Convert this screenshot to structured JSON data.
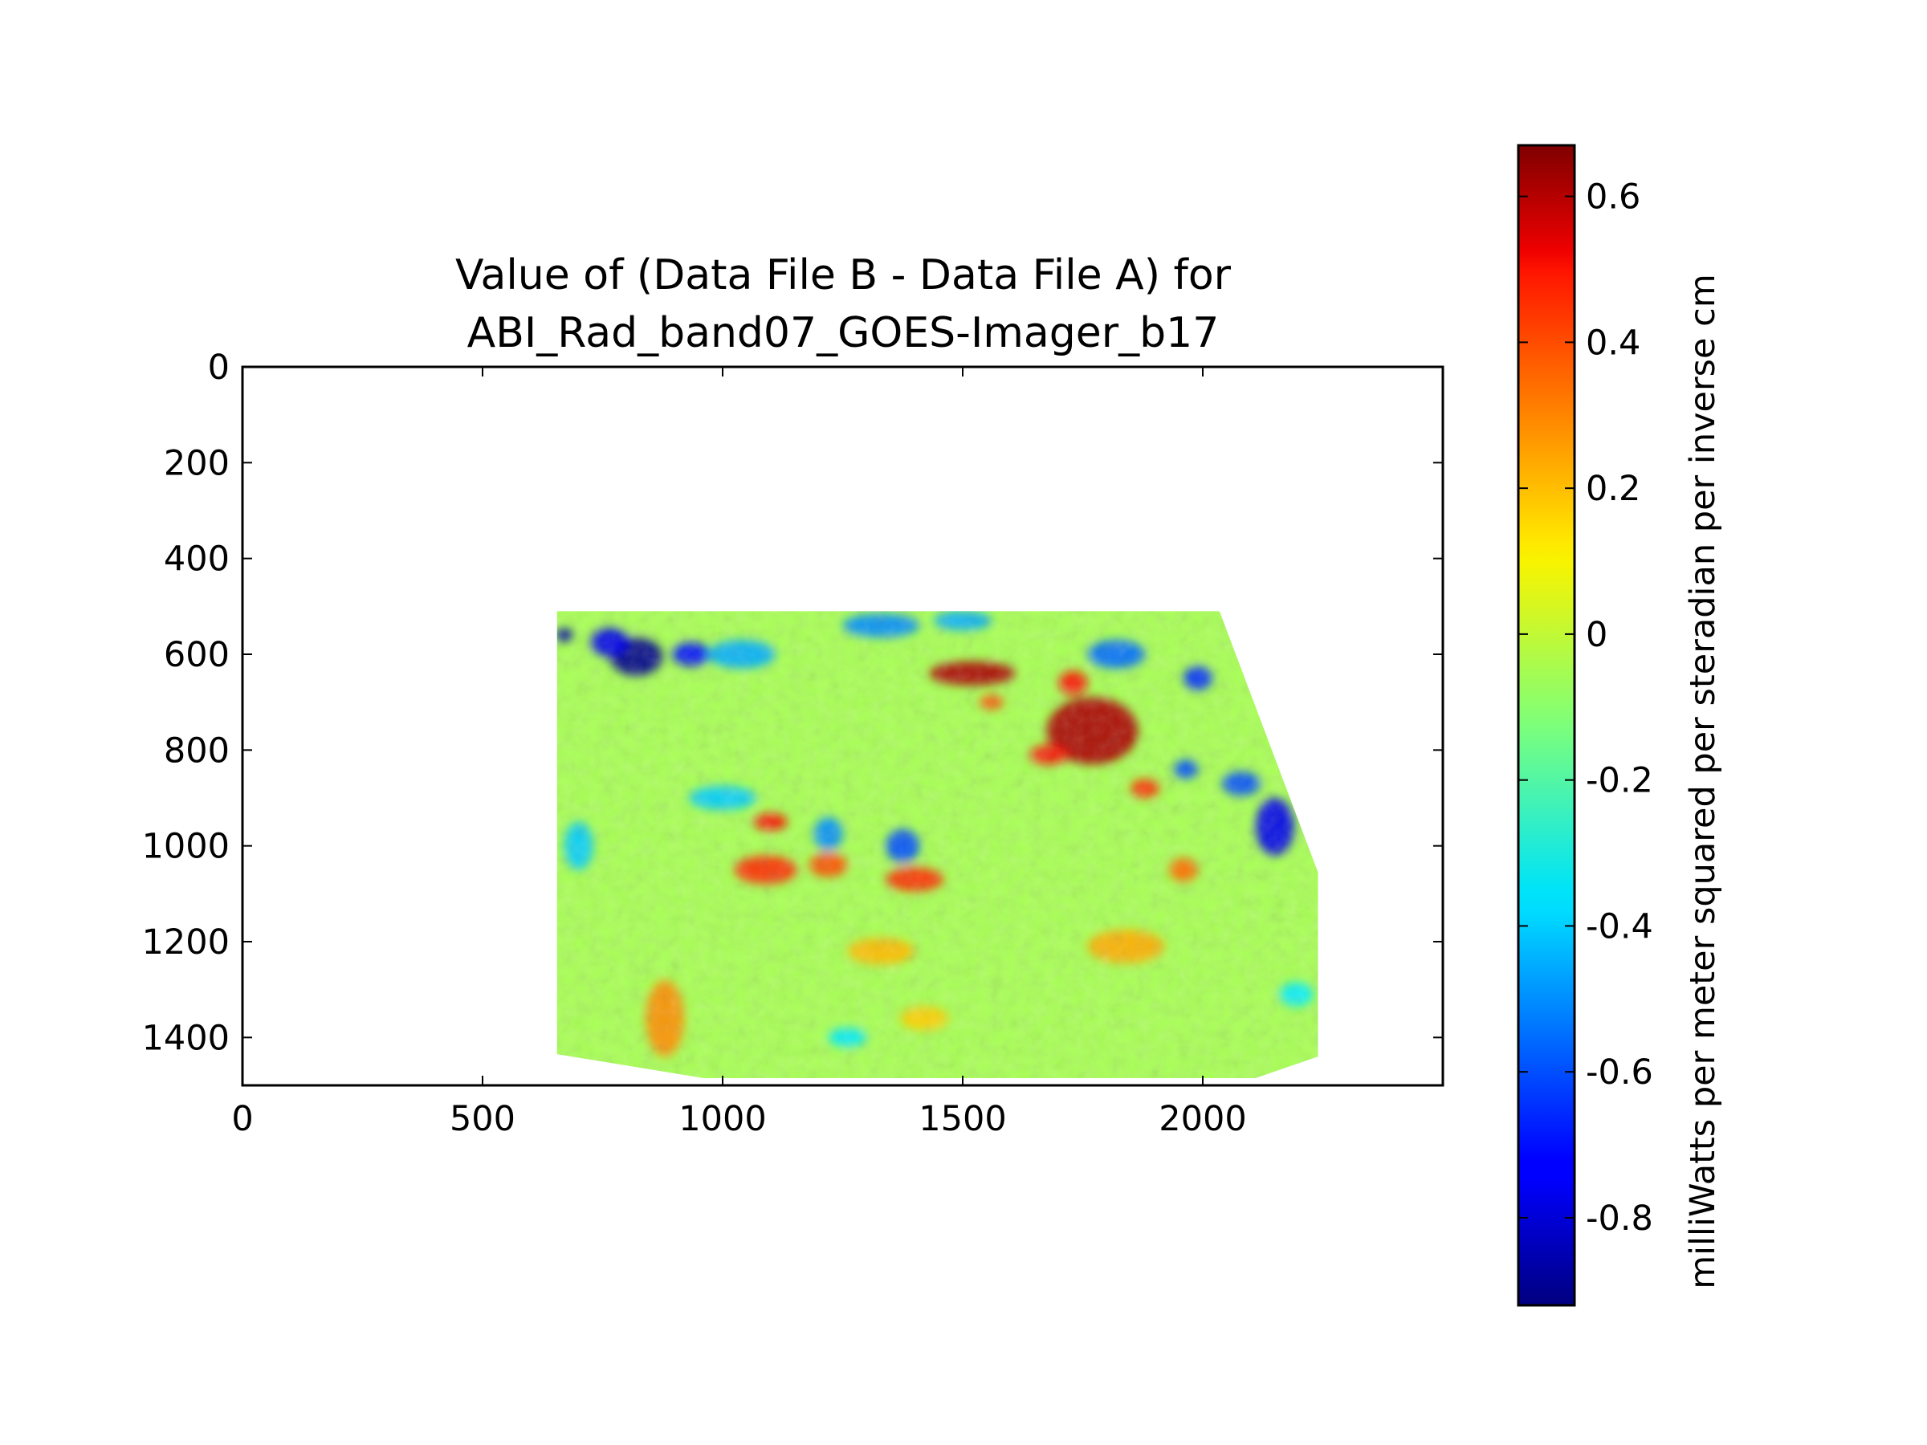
{
  "chart_data": {
    "type": "heatmap",
    "title": "Value of (Data File B - Data File A) for",
    "subtitle": "ABI_Rad_band07_GOES-Imager_b17",
    "xlabel": "",
    "ylabel": "",
    "xlim": [
      0,
      2500
    ],
    "ylim": [
      1500,
      0
    ],
    "y_axis_inverted": true,
    "x_ticks": [
      0,
      500,
      1000,
      1500,
      2000
    ],
    "x_tick_labels": [
      "0",
      "500",
      "1000",
      "1500",
      "2000"
    ],
    "y_ticks": [
      0,
      200,
      400,
      600,
      800,
      1000,
      1200,
      1400
    ],
    "y_tick_labels": [
      "0",
      "200",
      "400",
      "600",
      "800",
      "1000",
      "1200",
      "1400"
    ],
    "grid": false,
    "colormap": "jet",
    "data_footprint_polygon": [
      [
        655,
        510
      ],
      [
        2035,
        510
      ],
      [
        2240,
        1055
      ],
      [
        2240,
        1440
      ],
      [
        2110,
        1485
      ],
      [
        960,
        1485
      ],
      [
        655,
        1435
      ]
    ],
    "background_value": -0.06,
    "features": [
      {
        "kind": "negative",
        "x": 820,
        "y": 605,
        "rx": 55,
        "ry": 40,
        "value": -0.9
      },
      {
        "kind": "negative",
        "x": 765,
        "y": 575,
        "rx": 40,
        "ry": 30,
        "value": -0.75
      },
      {
        "kind": "negative",
        "x": 670,
        "y": 560,
        "rx": 18,
        "ry": 14,
        "value": -0.85
      },
      {
        "kind": "negative",
        "x": 935,
        "y": 600,
        "rx": 40,
        "ry": 25,
        "value": -0.7
      },
      {
        "kind": "negative",
        "x": 1040,
        "y": 600,
        "rx": 70,
        "ry": 30,
        "value": -0.45
      },
      {
        "kind": "negative",
        "x": 1330,
        "y": 540,
        "rx": 80,
        "ry": 25,
        "value": -0.5
      },
      {
        "kind": "negative",
        "x": 1500,
        "y": 530,
        "rx": 60,
        "ry": 20,
        "value": -0.45
      },
      {
        "kind": "negative",
        "x": 1820,
        "y": 600,
        "rx": 60,
        "ry": 30,
        "value": -0.55
      },
      {
        "kind": "negative",
        "x": 1990,
        "y": 650,
        "rx": 30,
        "ry": 25,
        "value": -0.65
      },
      {
        "kind": "negative",
        "x": 2150,
        "y": 960,
        "rx": 40,
        "ry": 60,
        "value": -0.75
      },
      {
        "kind": "negative",
        "x": 2080,
        "y": 870,
        "rx": 40,
        "ry": 25,
        "value": -0.6
      },
      {
        "kind": "negative",
        "x": 1965,
        "y": 840,
        "rx": 25,
        "ry": 20,
        "value": -0.6
      },
      {
        "kind": "negative",
        "x": 1375,
        "y": 1000,
        "rx": 35,
        "ry": 35,
        "value": -0.6
      },
      {
        "kind": "negative",
        "x": 1220,
        "y": 975,
        "rx": 30,
        "ry": 35,
        "value": -0.5
      },
      {
        "kind": "negative",
        "x": 1000,
        "y": 900,
        "rx": 70,
        "ry": 25,
        "value": -0.4
      },
      {
        "kind": "negative",
        "x": 700,
        "y": 1000,
        "rx": 30,
        "ry": 50,
        "value": -0.4
      },
      {
        "kind": "negative",
        "x": 1260,
        "y": 1400,
        "rx": 40,
        "ry": 20,
        "value": -0.35
      },
      {
        "kind": "negative",
        "x": 2195,
        "y": 1310,
        "rx": 35,
        "ry": 25,
        "value": -0.35
      },
      {
        "kind": "positive",
        "x": 1520,
        "y": 640,
        "rx": 90,
        "ry": 25,
        "value": 0.6
      },
      {
        "kind": "positive",
        "x": 1770,
        "y": 760,
        "rx": 95,
        "ry": 70,
        "value": 0.6
      },
      {
        "kind": "positive",
        "x": 1680,
        "y": 810,
        "rx": 40,
        "ry": 20,
        "value": 0.45
      },
      {
        "kind": "positive",
        "x": 1730,
        "y": 660,
        "rx": 30,
        "ry": 25,
        "value": 0.45
      },
      {
        "kind": "positive",
        "x": 1880,
        "y": 880,
        "rx": 30,
        "ry": 20,
        "value": 0.4
      },
      {
        "kind": "positive",
        "x": 1560,
        "y": 700,
        "rx": 25,
        "ry": 15,
        "value": 0.35
      },
      {
        "kind": "positive",
        "x": 1400,
        "y": 1070,
        "rx": 60,
        "ry": 25,
        "value": 0.4
      },
      {
        "kind": "positive",
        "x": 1220,
        "y": 1040,
        "rx": 40,
        "ry": 25,
        "value": 0.35
      },
      {
        "kind": "positive",
        "x": 1090,
        "y": 1050,
        "rx": 65,
        "ry": 30,
        "value": 0.4
      },
      {
        "kind": "positive",
        "x": 1100,
        "y": 950,
        "rx": 35,
        "ry": 18,
        "value": 0.45
      },
      {
        "kind": "positive",
        "x": 1840,
        "y": 1210,
        "rx": 80,
        "ry": 35,
        "value": 0.2
      },
      {
        "kind": "positive",
        "x": 1330,
        "y": 1220,
        "rx": 70,
        "ry": 28,
        "value": 0.18
      },
      {
        "kind": "positive",
        "x": 880,
        "y": 1360,
        "rx": 40,
        "ry": 80,
        "value": 0.25
      },
      {
        "kind": "positive",
        "x": 1420,
        "y": 1360,
        "rx": 50,
        "ry": 25,
        "value": 0.15
      },
      {
        "kind": "positive",
        "x": 1960,
        "y": 1050,
        "rx": 30,
        "ry": 25,
        "value": 0.3
      }
    ],
    "colorbar": {
      "min": -0.92,
      "max": 0.67,
      "ticks": [
        0.6,
        0.4,
        0.2,
        0,
        -0.2,
        -0.4,
        -0.6,
        -0.8
      ],
      "tick_labels": [
        "0.6",
        "0.4",
        "0.2",
        "0",
        "-0.2",
        "-0.4",
        "-0.6",
        "-0.8"
      ],
      "label": "milliWatts per meter squared per steradian per inverse cm"
    }
  }
}
